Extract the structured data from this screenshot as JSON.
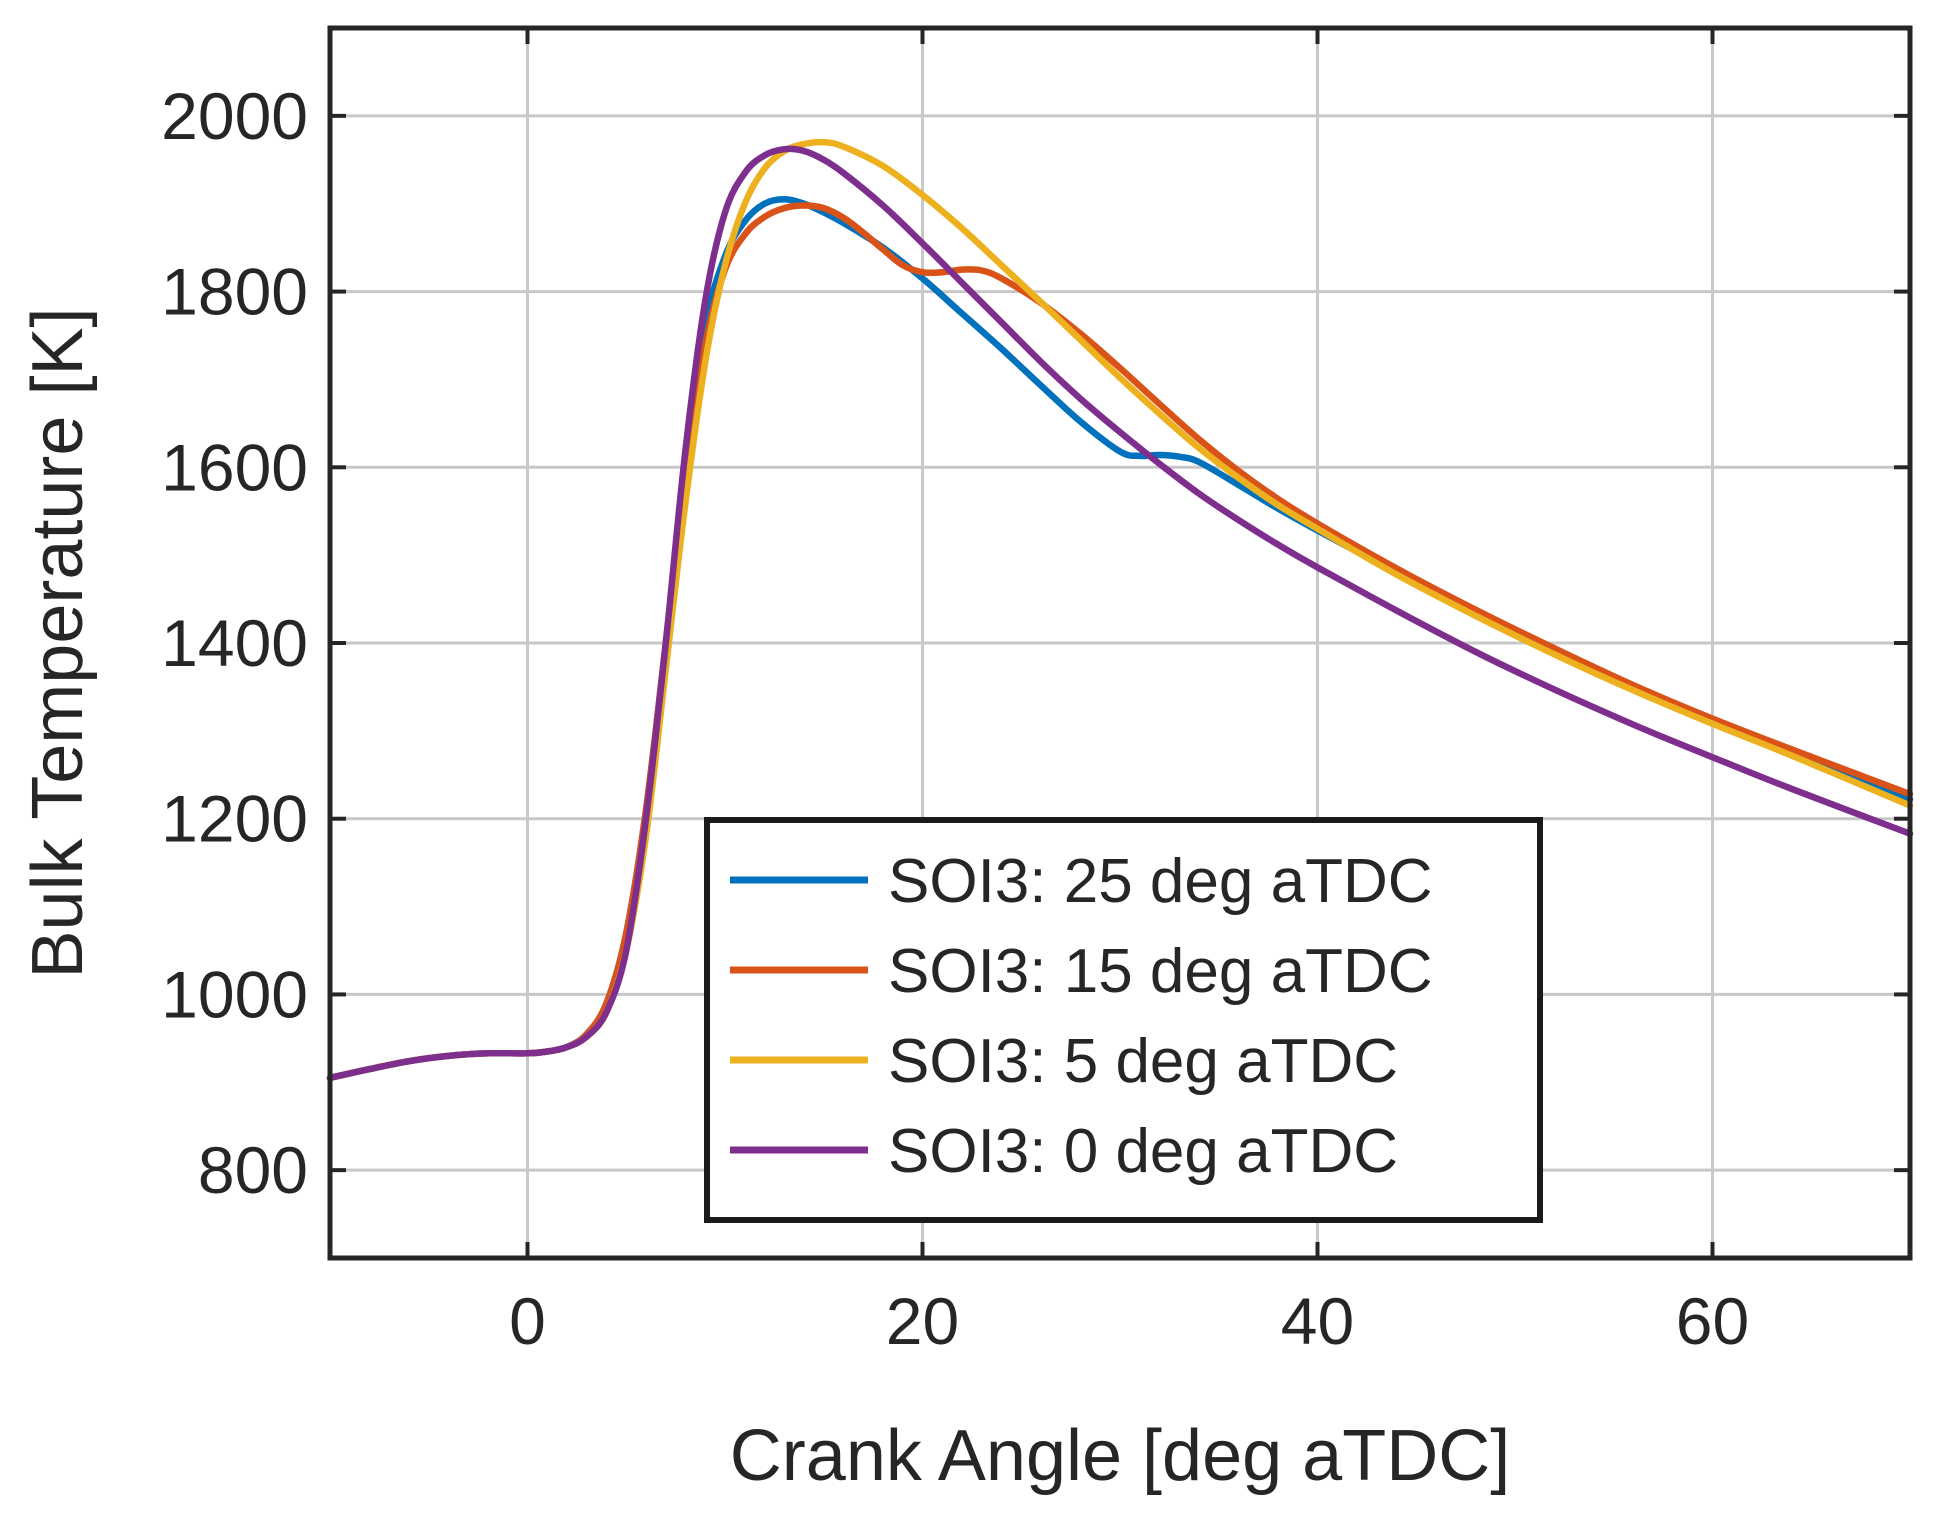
{
  "chart_data": {
    "type": "line",
    "title": "",
    "xlabel": "Crank Angle [deg aTDC]",
    "ylabel": "Bulk Temperature [K]",
    "xlim": [
      -10,
      70
    ],
    "ylim": [
      700,
      2100
    ],
    "xticks": [
      0,
      20,
      40,
      60
    ],
    "yticks": [
      800,
      1000,
      1200,
      1400,
      1600,
      1800,
      2000
    ],
    "xtick_labels": [
      "0",
      "20",
      "40",
      "60"
    ],
    "ytick_labels": [
      "800",
      "1000",
      "1200",
      "1400",
      "1600",
      "1800",
      "2000"
    ],
    "grid": true,
    "legend_position": "bottom-center",
    "series": [
      {
        "name": "SOI3: 25 deg aTDC",
        "color": "#0072BD",
        "x": [
          -10,
          -8,
          -6,
          -4,
          -2,
          0,
          1,
          2,
          3,
          4,
          5,
          6,
          7,
          8,
          9,
          10,
          11,
          12,
          13,
          14,
          15,
          16,
          18,
          20,
          22,
          24,
          26,
          28,
          30,
          31,
          32,
          33,
          34,
          36,
          38,
          40,
          44,
          48,
          52,
          56,
          60,
          64,
          70
        ],
        "y": [
          905,
          915,
          924,
          930,
          933,
          933,
          935,
          940,
          955,
          990,
          1070,
          1210,
          1400,
          1600,
          1760,
          1840,
          1880,
          1900,
          1905,
          1900,
          1890,
          1878,
          1850,
          1815,
          1775,
          1735,
          1693,
          1652,
          1618,
          1613,
          1614,
          1612,
          1606,
          1580,
          1553,
          1528,
          1480,
          1433,
          1390,
          1348,
          1310,
          1275,
          1222
        ]
      },
      {
        "name": "SOI3: 15 deg aTDC",
        "color": "#D95319",
        "x": [
          -10,
          -8,
          -6,
          -4,
          -2,
          0,
          1,
          2,
          3,
          4,
          5,
          6,
          7,
          8,
          9,
          10,
          11,
          12,
          13,
          14,
          15,
          16,
          17,
          18,
          19,
          20,
          21,
          22,
          23,
          24,
          26,
          28,
          30,
          32,
          34,
          36,
          38,
          40,
          44,
          48,
          52,
          56,
          60,
          64,
          70
        ],
        "y": [
          905,
          915,
          924,
          930,
          933,
          933,
          935,
          940,
          955,
          990,
          1070,
          1210,
          1400,
          1590,
          1740,
          1825,
          1865,
          1885,
          1895,
          1898,
          1895,
          1884,
          1867,
          1848,
          1830,
          1822,
          1822,
          1825,
          1824,
          1815,
          1787,
          1752,
          1713,
          1672,
          1632,
          1596,
          1564,
          1536,
          1485,
          1438,
          1394,
          1352,
          1314,
          1279,
          1228
        ]
      },
      {
        "name": "SOI3: 5 deg aTDC",
        "color": "#EDB120",
        "x": [
          -10,
          -8,
          -6,
          -4,
          -2,
          0,
          1,
          2,
          3,
          4,
          5,
          6,
          7,
          8,
          9,
          10,
          11,
          12,
          13,
          14,
          15,
          16,
          18,
          20,
          22,
          24,
          26,
          28,
          30,
          32,
          34,
          36,
          38,
          40,
          44,
          48,
          52,
          56,
          60,
          64,
          70
        ],
        "y": [
          905,
          915,
          924,
          930,
          933,
          933,
          935,
          940,
          952,
          980,
          1050,
          1180,
          1370,
          1560,
          1720,
          1830,
          1900,
          1940,
          1960,
          1968,
          1970,
          1965,
          1943,
          1910,
          1872,
          1830,
          1788,
          1745,
          1702,
          1661,
          1622,
          1588,
          1557,
          1530,
          1478,
          1431,
          1387,
          1346,
          1308,
          1272,
          1215
        ]
      },
      {
        "name": "SOI3: 0 deg aTDC",
        "color": "#7E2F8E",
        "x": [
          -10,
          -8,
          -6,
          -4,
          -2,
          0,
          1,
          2,
          3,
          4,
          5,
          6,
          7,
          8,
          9,
          10,
          11,
          12,
          13,
          14,
          15,
          16,
          18,
          20,
          22,
          24,
          26,
          28,
          30,
          32,
          34,
          36,
          38,
          40,
          44,
          48,
          52,
          56,
          60,
          64,
          70
        ],
        "y": [
          905,
          915,
          924,
          930,
          933,
          933,
          935,
          940,
          952,
          980,
          1050,
          1200,
          1400,
          1620,
          1790,
          1890,
          1935,
          1955,
          1962,
          1960,
          1950,
          1935,
          1898,
          1855,
          1810,
          1765,
          1720,
          1678,
          1640,
          1604,
          1570,
          1540,
          1512,
          1486,
          1437,
          1390,
          1347,
          1307,
          1270,
          1234,
          1183
        ]
      }
    ]
  }
}
